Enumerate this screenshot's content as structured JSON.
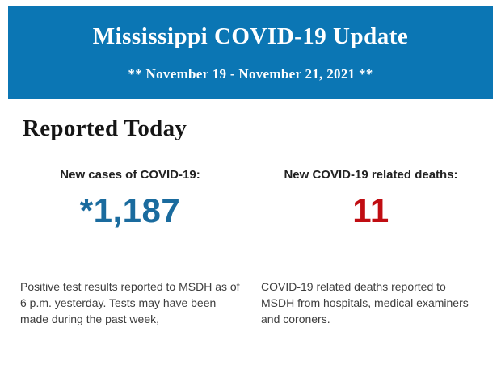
{
  "header": {
    "title": "Mississippi COVID-19 Update",
    "subtitle": "** November 19 - November 21, 2021 **",
    "bg_color": "#0b76b4",
    "text_color": "#ffffff"
  },
  "section": {
    "heading": "Reported Today"
  },
  "stats": {
    "cases": {
      "label": "New cases of COVID-19:",
      "value": "*1,187",
      "value_color": "#1a6b9e",
      "description": "Positive test results reported to MSDH as of 6 p.m. yesterday. Tests may have been made during the past week,"
    },
    "deaths": {
      "label": "New COVID-19 related deaths:",
      "value": "11",
      "value_color": "#c00d12",
      "description": "COVID-19 related deaths reported to MSDH from hospitals, medical examiners and coroners."
    }
  }
}
